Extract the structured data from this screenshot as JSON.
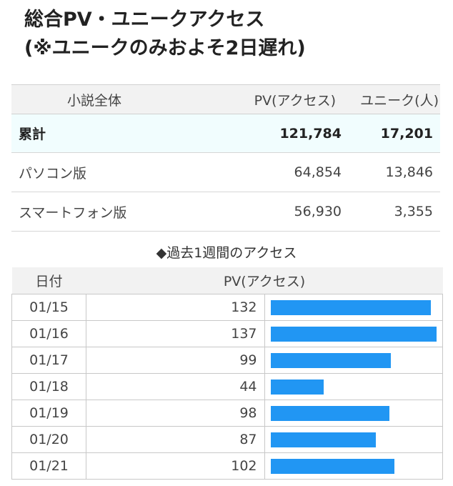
{
  "title": {
    "line1": "総合PV・ユニークアクセス",
    "line2": "(※ユニークのみおよそ2日遅れ)"
  },
  "summary": {
    "headers": [
      "小説全体",
      "PV(アクセス)",
      "ユニーク(人)"
    ],
    "rows": [
      {
        "label": "累計",
        "pv": "121,784",
        "unique": "17,201"
      },
      {
        "label": "パソコン版",
        "pv": "64,854",
        "unique": "13,846"
      },
      {
        "label": "スマートフォン版",
        "pv": "56,930",
        "unique": "3,355"
      }
    ]
  },
  "weekly": {
    "title": "◆過去1週間のアクセス",
    "headers": [
      "日付",
      "PV(アクセス)"
    ],
    "max_value": 137,
    "bar_color": "#2196f3",
    "rows": [
      {
        "date": "01/15",
        "pv": 132
      },
      {
        "date": "01/16",
        "pv": 137
      },
      {
        "date": "01/17",
        "pv": 99
      },
      {
        "date": "01/18",
        "pv": 44
      },
      {
        "date": "01/19",
        "pv": 98
      },
      {
        "date": "01/20",
        "pv": 87
      },
      {
        "date": "01/21",
        "pv": 102
      }
    ]
  }
}
